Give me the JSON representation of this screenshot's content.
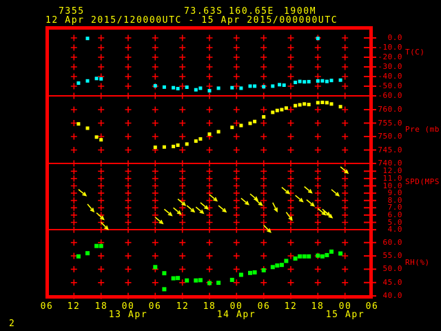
{
  "colors": {
    "background": "#000000",
    "axis": "#ff0000",
    "text": "#ffff00",
    "temperature": "#00ffff",
    "pressure": "#ffff00",
    "wind": "#ffff00",
    "humidity": "#00ff00"
  },
  "header": {
    "station_id": "7355",
    "latitude": "73.63S",
    "longitude": "160.65E",
    "elevation": "1900M",
    "time_range": "12 Apr 2015/120000UTC - 15 Apr 2015/000000UTC"
  },
  "footer": {
    "page_number": "2"
  },
  "chart_data": {
    "type": "scatter",
    "title": "7355  73.63S 160.65E 1900M",
    "subtitle": "12 Apr 2015/120000UTC - 15 Apr 2015/000000UTC",
    "grid": "on",
    "x_axis": {
      "description": "hours, 06 UTC 12 Apr 2015 through 06 UTC 15 Apr 2015, labels every 6 h",
      "span_hours": 72,
      "hour_step": 6,
      "hour_labels": [
        "06",
        "12",
        "18",
        "00",
        "06",
        "12",
        "18",
        "00",
        "06",
        "12",
        "18",
        "00",
        "06"
      ],
      "date_labels": [
        {
          "text": "13 Apr",
          "hour": 18
        },
        {
          "text": "14 Apr",
          "hour": 42
        },
        {
          "text": "15 Apr",
          "hour": 66
        }
      ]
    },
    "panels": [
      {
        "name": "temperature",
        "ylabel": "T(C)",
        "unit": "deg C",
        "marker": "square",
        "color_key": "temperature",
        "tick_labels": [
          "0.0",
          "-10.0",
          "-20.0",
          "-30.0",
          "-40.0",
          "-50.0",
          "-60.0"
        ],
        "tick_values": [
          0,
          -10,
          -20,
          -30,
          -40,
          -50,
          -60
        ],
        "points": [
          [
            7,
            -46.8
          ],
          [
            9,
            -0.5
          ],
          [
            9,
            -44.5
          ],
          [
            11,
            -42.0
          ],
          [
            12,
            -42.4
          ],
          [
            24,
            -49.6
          ],
          [
            26,
            -50.9
          ],
          [
            28,
            -51.6
          ],
          [
            29,
            -52.5
          ],
          [
            31,
            -51.1
          ],
          [
            33,
            -53.7
          ],
          [
            34,
            -52.1
          ],
          [
            36,
            -54.7
          ],
          [
            38,
            -52.1
          ],
          [
            41,
            -51.6
          ],
          [
            43,
            -52.1
          ],
          [
            45,
            -49.9
          ],
          [
            46,
            -49.9
          ],
          [
            48,
            -50.6
          ],
          [
            50,
            -49.9
          ],
          [
            51.5,
            -48.4
          ],
          [
            52.5,
            -48.9
          ],
          [
            55,
            -46.1
          ],
          [
            56,
            -45.1
          ],
          [
            57,
            -45.5
          ],
          [
            58,
            -45.3
          ],
          [
            60,
            -44.6
          ],
          [
            60,
            -0.5
          ],
          [
            61,
            -44.4
          ],
          [
            62,
            -45.1
          ],
          [
            63,
            -44.1
          ],
          [
            65,
            -43.7
          ]
        ]
      },
      {
        "name": "pressure",
        "ylabel": "Pre (mb)",
        "unit": "mb",
        "marker": "square",
        "color_key": "pressure",
        "tick_labels": [
          "760.0",
          "755.0",
          "750.0",
          "745.0",
          "740.0"
        ],
        "tick_values": [
          760,
          755,
          750,
          745,
          740
        ],
        "points": [
          [
            7,
            754.7
          ],
          [
            9,
            753.1
          ],
          [
            11,
            749.8
          ],
          [
            12,
            748.8
          ],
          [
            24,
            746.0
          ],
          [
            26,
            746.1
          ],
          [
            28,
            746.3
          ],
          [
            29,
            746.8
          ],
          [
            31,
            747.2
          ],
          [
            33,
            748.3
          ],
          [
            34,
            749.1
          ],
          [
            36,
            750.9
          ],
          [
            38,
            751.8
          ],
          [
            41,
            753.4
          ],
          [
            43,
            754.1
          ],
          [
            45,
            754.9
          ],
          [
            46,
            755.6
          ],
          [
            48,
            757.3
          ],
          [
            50,
            759.0
          ],
          [
            51,
            759.7
          ],
          [
            52,
            760.0
          ],
          [
            53,
            760.6
          ],
          [
            55,
            761.5
          ],
          [
            56,
            761.8
          ],
          [
            57,
            762.1
          ],
          [
            58,
            761.9
          ],
          [
            60,
            762.6
          ],
          [
            61,
            762.7
          ],
          [
            62,
            762.6
          ],
          [
            63,
            762.1
          ],
          [
            65,
            761.1
          ]
        ]
      },
      {
        "name": "wind_speed",
        "ylabel": "SPD(MPS)",
        "unit": "m/s",
        "marker": "arrow",
        "color_key": "wind",
        "tick_labels": [
          "12.0",
          "11.0",
          "10.0",
          "9.0",
          "8.0",
          "7.0",
          "6.0",
          "5.0",
          "4.0"
        ],
        "tick_values": [
          12,
          11,
          10,
          9,
          8,
          7,
          6,
          5,
          4
        ],
        "points": [
          [
            7,
            9.5,
            39
          ],
          [
            9,
            7.5,
            50
          ],
          [
            11,
            6.3,
            42
          ],
          [
            12,
            5.0,
            45
          ],
          [
            24,
            5.7,
            40
          ],
          [
            26,
            6.8,
            40
          ],
          [
            28,
            7.0,
            40
          ],
          [
            29,
            8.2,
            40
          ],
          [
            31,
            7.3,
            40
          ],
          [
            33,
            7.1,
            40
          ],
          [
            34,
            7.7,
            40
          ],
          [
            36,
            8.8,
            40
          ],
          [
            38,
            7.3,
            40
          ],
          [
            43,
            8.3,
            40
          ],
          [
            45,
            8.9,
            40
          ],
          [
            46,
            8.2,
            40
          ],
          [
            48,
            4.6,
            45
          ],
          [
            50,
            7.7,
            63
          ],
          [
            52,
            9.8,
            40
          ],
          [
            53,
            6.4,
            54
          ],
          [
            55,
            8.7,
            40
          ],
          [
            57,
            9.9,
            40
          ],
          [
            57.5,
            8.1,
            40
          ],
          [
            60,
            6.9,
            40
          ],
          [
            61,
            6.8,
            40
          ],
          [
            61.5,
            6.5,
            40
          ],
          [
            63,
            9.5,
            40
          ],
          [
            65,
            12.6,
            40
          ]
        ]
      },
      {
        "name": "relative_humidity",
        "ylabel": "RH(%)",
        "unit": "%",
        "marker": "square",
        "color_key": "humidity",
        "tick_labels": [
          "60.0",
          "55.0",
          "50.0",
          "45.0",
          "40.0"
        ],
        "tick_values": [
          60,
          55,
          50,
          45,
          40
        ],
        "points": [
          [
            7,
            54.8
          ],
          [
            9,
            56.0
          ],
          [
            11,
            58.7
          ],
          [
            12,
            58.7
          ],
          [
            24,
            50.8
          ],
          [
            26,
            48.5
          ],
          [
            26,
            42.5
          ],
          [
            28,
            46.6
          ],
          [
            29,
            46.7
          ],
          [
            31,
            45.8
          ],
          [
            33,
            45.8
          ],
          [
            34,
            45.9
          ],
          [
            36,
            44.8
          ],
          [
            38,
            44.9
          ],
          [
            41,
            46.0
          ],
          [
            43,
            47.9
          ],
          [
            45,
            48.6
          ],
          [
            46,
            48.8
          ],
          [
            48,
            49.6
          ],
          [
            50,
            50.8
          ],
          [
            51,
            51.4
          ],
          [
            52,
            51.6
          ],
          [
            53,
            53.1
          ],
          [
            55,
            54.0
          ],
          [
            56,
            54.8
          ],
          [
            57,
            54.8
          ],
          [
            58,
            54.8
          ],
          [
            60,
            55.1
          ],
          [
            61,
            54.8
          ],
          [
            62,
            55.3
          ],
          [
            63,
            56.6
          ],
          [
            65,
            55.9
          ]
        ]
      }
    ]
  }
}
